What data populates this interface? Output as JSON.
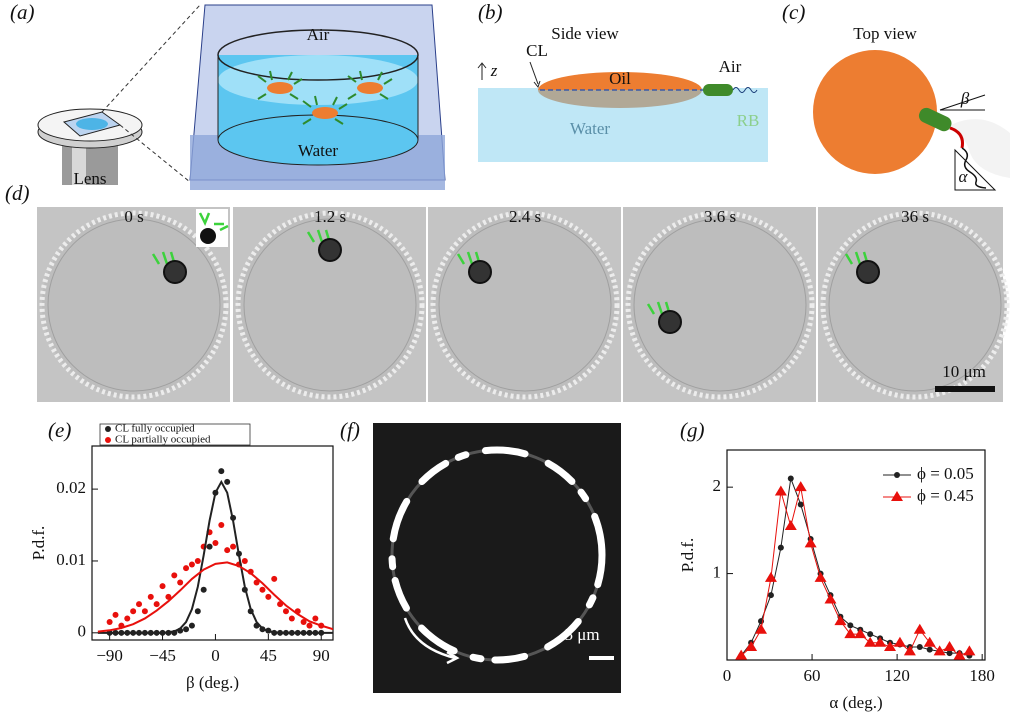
{
  "panel_labels": [
    "(a)",
    "(b)",
    "(c)",
    "(d)",
    "(e)",
    "(f)",
    "(g)"
  ],
  "a": {
    "air": "Air",
    "water": "Water",
    "lens": "Lens"
  },
  "b": {
    "title": "Side view",
    "cl": "CL",
    "z": "z",
    "oil": "Oil",
    "air": "Air",
    "water": "Water",
    "rb": "RB"
  },
  "c": {
    "title": "Top view",
    "beta": "β",
    "alpha": "α"
  },
  "d": {
    "times": [
      "0 s",
      "1.2 s",
      "2.4 s",
      "3.6 s",
      "36 s"
    ],
    "scale": "10 μm"
  },
  "f": {
    "scale": "5 μm"
  },
  "chart_data": [
    {
      "type": "scatter",
      "xlabel": "β (deg.)",
      "ylabel": "P.d.f.",
      "xlim": [
        -105,
        100
      ],
      "ylim": [
        -0.001,
        0.026
      ],
      "xticks": [
        {
          "value": -90,
          "label": "−90"
        },
        {
          "value": -45,
          "label": "−45"
        },
        0,
        45,
        90
      ],
      "yticks": [
        0,
        0.01,
        0.02
      ],
      "legend": "top",
      "series": [
        {
          "name": "CL fully occupied",
          "color": "#222222",
          "marker": "circle",
          "x": [
            -90,
            -85,
            -80,
            -75,
            -70,
            -65,
            -60,
            -55,
            -50,
            -45,
            -40,
            -35,
            -30,
            -25,
            -20,
            -15,
            -10,
            -5,
            0,
            5,
            10,
            15,
            20,
            25,
            30,
            35,
            40,
            45,
            50,
            55,
            60,
            65,
            70,
            75,
            80,
            85,
            90
          ],
          "values": [
            0,
            0,
            0,
            0,
            0,
            0,
            0,
            0,
            0,
            0,
            0,
            0,
            0.0003,
            0.0005,
            0.001,
            0.003,
            0.006,
            0.012,
            0.0195,
            0.0225,
            0.021,
            0.016,
            0.011,
            0.006,
            0.003,
            0.001,
            0.0005,
            0.0003,
            0,
            0,
            0,
            0,
            0,
            0,
            0,
            0,
            0
          ]
        },
        {
          "name": "CL partially occupied",
          "color": "#e8100c",
          "marker": "circle",
          "x": [
            -90,
            -85,
            -80,
            -75,
            -70,
            -65,
            -60,
            -55,
            -50,
            -45,
            -40,
            -35,
            -30,
            -25,
            -20,
            -15,
            -10,
            -5,
            0,
            5,
            10,
            15,
            20,
            25,
            30,
            35,
            40,
            45,
            50,
            55,
            60,
            65,
            70,
            75,
            80,
            85,
            90
          ],
          "values": [
            0.0015,
            0.0025,
            0.001,
            0.002,
            0.003,
            0.004,
            0.003,
            0.005,
            0.004,
            0.0065,
            0.005,
            0.008,
            0.007,
            0.009,
            0.0095,
            0.01,
            0.012,
            0.014,
            0.0125,
            0.015,
            0.0115,
            0.012,
            0.0095,
            0.01,
            0.0085,
            0.007,
            0.006,
            0.005,
            0.0075,
            0.004,
            0.003,
            0.002,
            0.003,
            0.0015,
            0.001,
            0.002,
            0.001
          ]
        },
        {
          "color": "#222222",
          "style": "line",
          "x": [
            -100,
            -95,
            -90,
            -85,
            -80,
            -75,
            -70,
            -65,
            -60,
            -55,
            -50,
            -45,
            -40,
            -35,
            -30,
            -25,
            -20,
            -15,
            -10,
            -5,
            0,
            5,
            10,
            15,
            20,
            25,
            30,
            35,
            40,
            45,
            50,
            55,
            60,
            65,
            70,
            75,
            80,
            85,
            90,
            95,
            100
          ],
          "values": [
            0,
            0,
            0,
            0,
            0,
            0,
            0,
            0,
            0,
            0,
            0,
            0,
            0.0001,
            0.0002,
            0.0006,
            0.0015,
            0.0033,
            0.0064,
            0.0108,
            0.0156,
            0.0195,
            0.021,
            0.0195,
            0.0156,
            0.0108,
            0.0064,
            0.0033,
            0.0015,
            0.0006,
            0.0002,
            0.0001,
            0,
            0,
            0,
            0,
            0,
            0,
            0,
            0,
            0,
            0
          ]
        },
        {
          "color": "#e8100c",
          "style": "line",
          "x": [
            -100,
            -90,
            -80,
            -70,
            -60,
            -50,
            -40,
            -30,
            -20,
            -10,
            0,
            10,
            20,
            30,
            40,
            50,
            60,
            70,
            80,
            90,
            100
          ],
          "values": [
            0.00017,
            0.00035,
            0.00067,
            0.0012,
            0.002,
            0.0031,
            0.0044,
            0.0059,
            0.0075,
            0.0088,
            0.0096,
            0.0098,
            0.0093,
            0.0083,
            0.0069,
            0.0053,
            0.0038,
            0.0026,
            0.0016,
            0.001,
            0.0005
          ]
        }
      ]
    },
    {
      "type": "line",
      "xlabel": "α (deg.)",
      "ylabel": "P.d.f.",
      "xlim": [
        0,
        182
      ],
      "ylim": [
        0,
        2.43
      ],
      "xticks": [
        0,
        60,
        120,
        180
      ],
      "yticks": [
        1,
        2
      ],
      "legend": "upper right",
      "series": [
        {
          "name": "ϕ = 0.05",
          "color": "#222222",
          "marker": "circle",
          "x": [
            10,
            17,
            24,
            31,
            38,
            45,
            52,
            59,
            66,
            73,
            80,
            87,
            94,
            101,
            108,
            115,
            122,
            129,
            136,
            143,
            150,
            157,
            164,
            171
          ],
          "values": [
            0.05,
            0.2,
            0.45,
            0.75,
            1.3,
            2.1,
            1.8,
            1.4,
            1.0,
            0.75,
            0.5,
            0.4,
            0.35,
            0.3,
            0.25,
            0.2,
            0.18,
            0.15,
            0.15,
            0.12,
            0.1,
            0.08,
            0.08,
            0.05
          ]
        },
        {
          "name": "ϕ = 0.45",
          "color": "#e8100c",
          "marker": "triangle",
          "x": [
            10,
            17,
            24,
            31,
            38,
            45,
            52,
            59,
            66,
            73,
            80,
            87,
            94,
            101,
            108,
            115,
            122,
            129,
            136,
            143,
            150,
            157,
            164,
            171
          ],
          "values": [
            0.05,
            0.15,
            0.35,
            0.95,
            1.95,
            1.55,
            2.0,
            1.35,
            0.95,
            0.7,
            0.45,
            0.3,
            0.3,
            0.2,
            0.2,
            0.15,
            0.2,
            0.1,
            0.35,
            0.2,
            0.1,
            0.15,
            0.05,
            0.1
          ]
        }
      ]
    }
  ]
}
